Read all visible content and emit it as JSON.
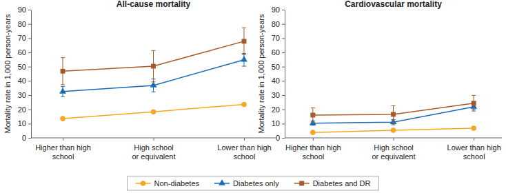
{
  "chart_data": [
    {
      "type": "line",
      "title": "All-cause mortality",
      "y_label": "Mortality rate in 1,000 person-years",
      "categories": [
        "Higher than high\nschool",
        "High school\nor equivalent",
        "Lower than high\nschool"
      ],
      "ylim": [
        0,
        90
      ],
      "yticks": [
        0,
        10,
        20,
        30,
        40,
        50,
        60,
        70,
        80,
        90
      ],
      "legend": "bottom",
      "series": [
        {
          "name": "Non-diabetes",
          "color": "#f5a623",
          "marker": "circle",
          "values": [
            13.5,
            18.3,
            23.5
          ],
          "error": [
            0.5,
            0.6,
            0.8
          ]
        },
        {
          "name": "Diabetes only",
          "color": "#1a6bb5",
          "marker": "triangle",
          "values": [
            32.5,
            36.8,
            54.8
          ],
          "error": [
            3.5,
            4.5,
            4.5
          ]
        },
        {
          "name": "Diabetes and DR",
          "color": "#a65a2a",
          "marker": "square",
          "values": [
            46.8,
            50.3,
            67.8
          ],
          "error": [
            9.5,
            11.0,
            9.5
          ]
        }
      ]
    },
    {
      "type": "line",
      "title": "Cardiovascular mortality",
      "y_label": "Mortality rate in 1,000 person-years",
      "categories": [
        "Higher than high\nschool",
        "High school\nor equivalent",
        "Lower than high\nschool"
      ],
      "ylim": [
        0,
        90
      ],
      "yticks": [
        0,
        10,
        20,
        30,
        40,
        50,
        60,
        70,
        80,
        90
      ],
      "series": [
        {
          "name": "Non-diabetes",
          "color": "#f5a623",
          "marker": "circle",
          "values": [
            3.8,
            5.3,
            6.8
          ],
          "error": [
            0.3,
            0.4,
            0.5
          ]
        },
        {
          "name": "Diabetes only",
          "color": "#1a6bb5",
          "marker": "triangle",
          "values": [
            10.3,
            11.0,
            21.8
          ],
          "error": [
            1.5,
            1.8,
            2.0
          ]
        },
        {
          "name": "Diabetes and DR",
          "color": "#a65a2a",
          "marker": "square",
          "values": [
            16.0,
            16.5,
            24.3
          ],
          "error": [
            5.0,
            6.0,
            5.5
          ]
        }
      ]
    }
  ]
}
